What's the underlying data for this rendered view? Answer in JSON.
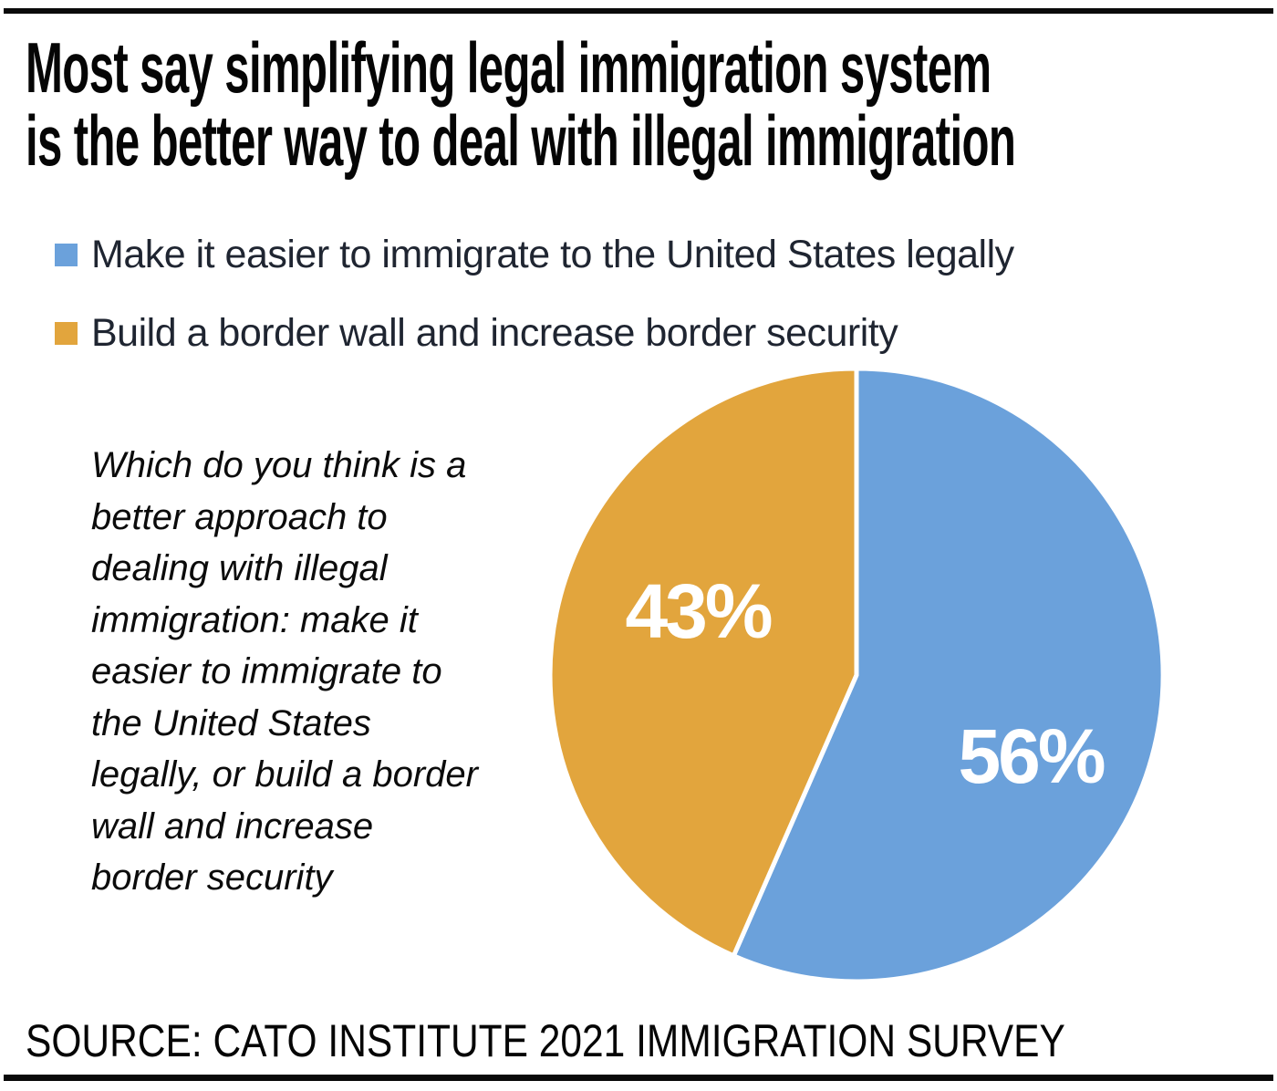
{
  "title": {
    "line1": "Most say simplifying legal immigration system",
    "line2": "is the better way to deal with illegal immigration"
  },
  "legend": {
    "items": [
      {
        "label": "Make it easier to immigrate to the United States legally",
        "color": "#6BA1DB"
      },
      {
        "label": "Build a border wall and increase border security",
        "color": "#E2A53D"
      }
    ]
  },
  "question": {
    "lines": [
      "Which do you think is a",
      "better approach to",
      "dealing with illegal",
      "immigration: make it",
      "easier to immigrate to",
      "the United States",
      "legally, or build a border",
      "wall and increase",
      "border security"
    ]
  },
  "source": "SOURCE: CATO INSTITUTE 2021 IMMIGRATION SURVEY",
  "chart_data": {
    "type": "pie",
    "title": "Most say simplifying legal immigration system is the better way to deal with illegal immigration",
    "categories": [
      "Make it easier to immigrate to the United States legally",
      "Build a border wall and increase border security"
    ],
    "values": [
      56,
      43
    ],
    "labels": [
      "56%",
      "43%"
    ],
    "colors": [
      "#6BA1DB",
      "#E2A53D"
    ],
    "slice_label_color": "#FFFFFF",
    "separator_color": "#FFFFFF",
    "start_angle_deg": 0,
    "direction": "clockwise",
    "legend_position": "top-left"
  }
}
